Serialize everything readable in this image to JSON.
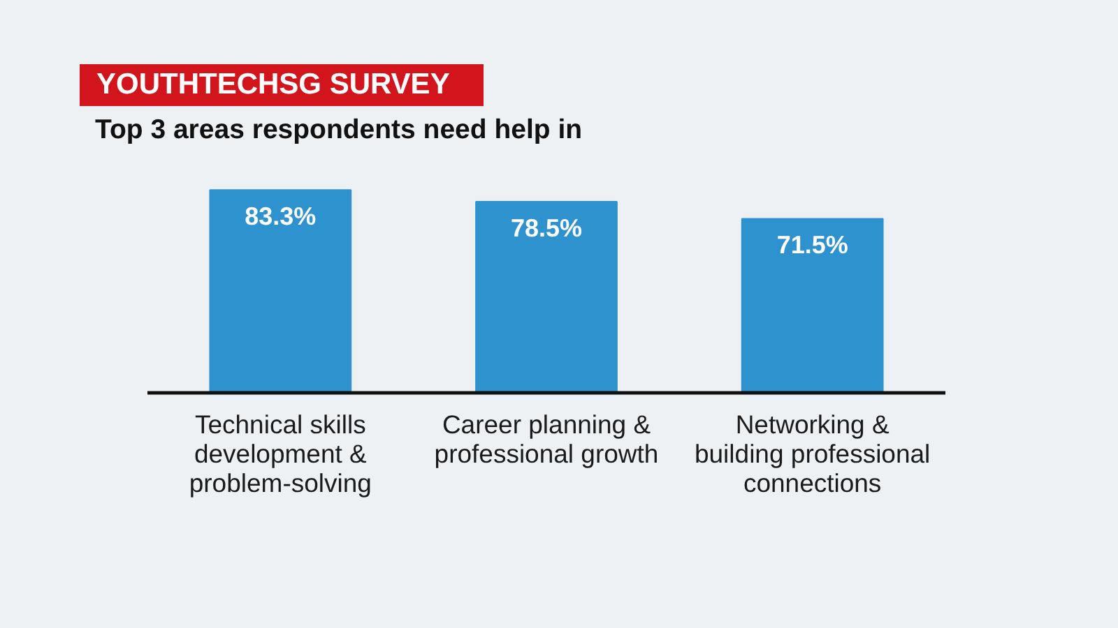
{
  "chart_data": {
    "type": "bar",
    "title": "YOUTHTECHSG SURVEY",
    "subtitle": "Top 3 areas respondents need help in",
    "categories": [
      "Technical skills\ndevelopment &\nproblem-solving",
      "Career planning &\nprofessional growth",
      "Networking &\nbuilding professional\nconnections"
    ],
    "values": [
      83.3,
      78.5,
      71.5
    ],
    "color": "#2e92cf",
    "value_labels": [
      "83.3%",
      "78.5%",
      "71.5%"
    ],
    "grid": false
  }
}
